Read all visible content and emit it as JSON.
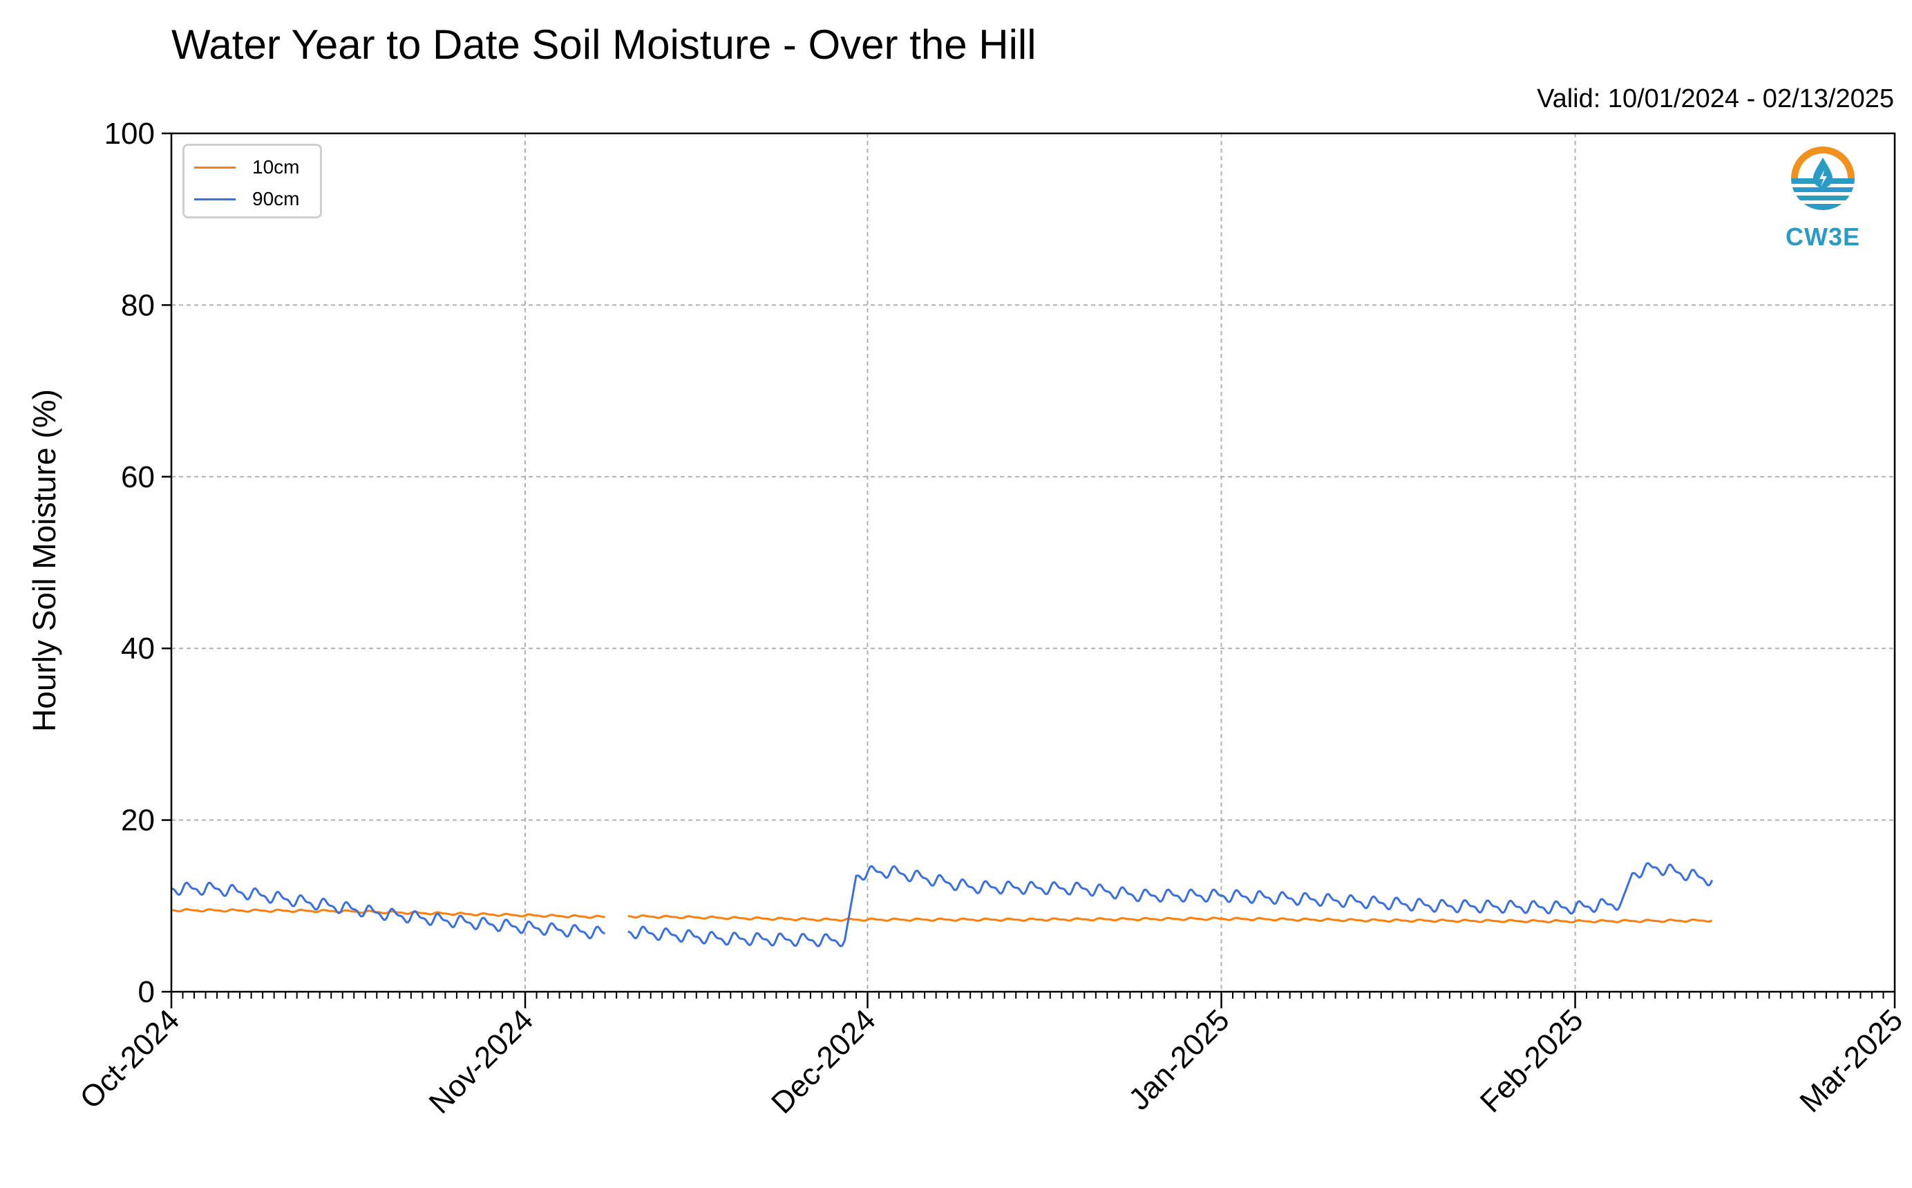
{
  "title": "Water Year to Date Soil Moisture - Over the Hill",
  "valid_text": "Valid: 10/01/2024 - 02/13/2025",
  "logo_text": "CW3E",
  "colors": {
    "10cm": "#ff7f0e",
    "90cm": "#3a6fe0",
    "grid": "#b0b0b0",
    "logo_orange": "#f0911e",
    "logo_blue": "#2a9bc4"
  },
  "chart_data": {
    "type": "line",
    "title": "Water Year to Date Soil Moisture - Over the Hill",
    "xlabel": "",
    "ylabel": "Hourly Soil Moisture (%)",
    "x_ticks": [
      "Oct-2024",
      "Nov-2024",
      "Dec-2024",
      "Jan-2025",
      "Feb-2025",
      "Mar-2025"
    ],
    "xlim": [
      "2024-10-01",
      "2025-03-01"
    ],
    "ylim": [
      0,
      100
    ],
    "y_ticks": [
      0,
      20,
      40,
      60,
      80,
      100
    ],
    "grid": true,
    "legend_position": "top-left",
    "series": [
      {
        "name": "10cm",
        "points": [
          [
            "2024-10-01",
            9.5
          ],
          [
            "2024-10-15",
            9.4
          ],
          [
            "2024-11-01",
            8.9
          ],
          [
            "2024-11-08",
            8.7
          ],
          null,
          [
            "2024-11-10",
            8.8
          ],
          [
            "2024-11-27",
            8.4
          ],
          [
            "2024-12-15",
            8.4
          ],
          [
            "2025-01-01",
            8.5
          ],
          [
            "2025-01-15",
            8.3
          ],
          [
            "2025-02-01",
            8.2
          ],
          [
            "2025-02-13",
            8.3
          ]
        ]
      },
      {
        "name": "90cm",
        "points": [
          [
            "2024-10-01",
            12.0
          ],
          [
            "2024-10-05",
            12.0
          ],
          [
            "2024-10-10",
            11.0
          ],
          [
            "2024-10-15",
            10.0
          ],
          [
            "2024-10-20",
            9.0
          ],
          [
            "2024-10-25",
            8.3
          ],
          [
            "2024-11-01",
            7.5
          ],
          [
            "2024-11-08",
            6.8
          ],
          null,
          [
            "2024-11-10",
            7.0
          ],
          [
            "2024-11-18",
            6.2
          ],
          [
            "2024-11-27",
            6.0
          ],
          [
            "2024-11-29",
            6.0
          ],
          [
            "2024-11-30",
            13.5
          ],
          [
            "2024-12-01",
            13.9
          ],
          [
            "2024-12-03",
            14.0
          ],
          [
            "2024-12-10",
            12.2
          ],
          [
            "2024-12-20",
            12.0
          ],
          [
            "2024-12-25",
            11.2
          ],
          [
            "2025-01-01",
            11.2
          ],
          [
            "2025-01-10",
            10.7
          ],
          [
            "2025-01-20",
            10.0
          ],
          [
            "2025-02-01",
            9.8
          ],
          [
            "2025-02-05",
            10.3
          ],
          [
            "2025-02-06",
            13.8
          ],
          [
            "2025-02-08",
            14.5
          ],
          [
            "2025-02-13",
            13.0
          ]
        ]
      }
    ]
  }
}
